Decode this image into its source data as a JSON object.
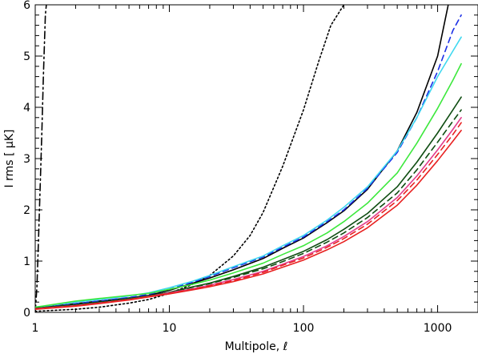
{
  "chart_data": {
    "type": "line",
    "xlabel": "Multipole, ℓ",
    "ylabel": "I rms [ μK]",
    "xscale": "log",
    "xlim": [
      1,
      2000
    ],
    "ylim": [
      0,
      6
    ],
    "grid": false,
    "x_ticks": [
      {
        "value": 1,
        "label": "1"
      },
      {
        "value": 10,
        "label": "10"
      },
      {
        "value": 100,
        "label": "100"
      },
      {
        "value": 1000,
        "label": "1000"
      }
    ],
    "y_ticks": [
      {
        "value": 0,
        "label": "0"
      },
      {
        "value": 1,
        "label": "1"
      },
      {
        "value": 2,
        "label": "2"
      },
      {
        "value": 3,
        "label": "3"
      },
      {
        "value": 4,
        "label": "4"
      },
      {
        "value": 5,
        "label": "5"
      },
      {
        "value": 6,
        "label": "6"
      }
    ],
    "series": [
      {
        "color": "#000000",
        "dash": "9 4 2 4",
        "points": [
          [
            1.0,
            0.0
          ],
          [
            1.03,
            0.5
          ],
          [
            1.06,
            1.5
          ],
          [
            1.09,
            2.5
          ],
          [
            1.12,
            3.5
          ],
          [
            1.15,
            4.6
          ],
          [
            1.19,
            5.8
          ],
          [
            1.21,
            6.0
          ]
        ]
      },
      {
        "color": "#000000",
        "dash": "2 3",
        "points": [
          [
            1,
            0.02
          ],
          [
            2,
            0.06
          ],
          [
            3,
            0.1
          ],
          [
            5,
            0.18
          ],
          [
            7,
            0.25
          ],
          [
            10,
            0.37
          ],
          [
            15,
            0.55
          ],
          [
            20,
            0.72
          ],
          [
            30,
            1.1
          ],
          [
            40,
            1.5
          ],
          [
            50,
            1.95
          ],
          [
            70,
            2.85
          ],
          [
            100,
            3.95
          ],
          [
            130,
            4.9
          ],
          [
            160,
            5.6
          ],
          [
            200,
            6.0
          ]
        ]
      },
      {
        "color": "#000000",
        "dash": "",
        "points": [
          [
            1,
            0.08
          ],
          [
            2,
            0.17
          ],
          [
            3,
            0.22
          ],
          [
            5,
            0.28
          ],
          [
            7,
            0.33
          ],
          [
            10,
            0.43
          ],
          [
            15,
            0.57
          ],
          [
            20,
            0.67
          ],
          [
            30,
            0.83
          ],
          [
            50,
            1.05
          ],
          [
            70,
            1.25
          ],
          [
            100,
            1.45
          ],
          [
            150,
            1.75
          ],
          [
            200,
            1.98
          ],
          [
            300,
            2.4
          ],
          [
            500,
            3.15
          ],
          [
            700,
            3.9
          ],
          [
            1000,
            5.0
          ],
          [
            1200,
            6.0
          ]
        ]
      },
      {
        "color": "#1a2ee6",
        "dash": "7 5",
        "points": [
          [
            1,
            0.08
          ],
          [
            2,
            0.17
          ],
          [
            3,
            0.22
          ],
          [
            5,
            0.29
          ],
          [
            7,
            0.35
          ],
          [
            10,
            0.45
          ],
          [
            15,
            0.59
          ],
          [
            20,
            0.7
          ],
          [
            30,
            0.87
          ],
          [
            50,
            1.08
          ],
          [
            70,
            1.27
          ],
          [
            100,
            1.47
          ],
          [
            150,
            1.77
          ],
          [
            200,
            2.0
          ],
          [
            300,
            2.42
          ],
          [
            500,
            3.12
          ],
          [
            700,
            3.8
          ],
          [
            1000,
            4.7
          ],
          [
            1300,
            5.5
          ],
          [
            1500,
            5.8
          ]
        ]
      },
      {
        "color": "#3fd8f0",
        "dash": "",
        "points": [
          [
            1,
            0.1
          ],
          [
            2,
            0.2
          ],
          [
            3,
            0.25
          ],
          [
            5,
            0.32
          ],
          [
            7,
            0.38
          ],
          [
            10,
            0.48
          ],
          [
            15,
            0.61
          ],
          [
            20,
            0.72
          ],
          [
            30,
            0.89
          ],
          [
            50,
            1.1
          ],
          [
            70,
            1.3
          ],
          [
            100,
            1.5
          ],
          [
            150,
            1.8
          ],
          [
            200,
            2.05
          ],
          [
            300,
            2.45
          ],
          [
            500,
            3.15
          ],
          [
            700,
            3.8
          ],
          [
            1000,
            4.6
          ],
          [
            1300,
            5.1
          ],
          [
            1500,
            5.37
          ]
        ]
      },
      {
        "color": "#3de83d",
        "dash": "",
        "points": [
          [
            1,
            0.1
          ],
          [
            2,
            0.22
          ],
          [
            3,
            0.27
          ],
          [
            5,
            0.33
          ],
          [
            7,
            0.37
          ],
          [
            10,
            0.45
          ],
          [
            15,
            0.55
          ],
          [
            20,
            0.63
          ],
          [
            30,
            0.77
          ],
          [
            50,
            0.96
          ],
          [
            70,
            1.13
          ],
          [
            100,
            1.3
          ],
          [
            150,
            1.55
          ],
          [
            200,
            1.77
          ],
          [
            300,
            2.13
          ],
          [
            500,
            2.72
          ],
          [
            700,
            3.3
          ],
          [
            1000,
            3.98
          ],
          [
            1300,
            4.53
          ],
          [
            1500,
            4.85
          ]
        ]
      },
      {
        "color": "#0f4d12",
        "dash": "",
        "points": [
          [
            1,
            0.08
          ],
          [
            2,
            0.15
          ],
          [
            3,
            0.2
          ],
          [
            5,
            0.27
          ],
          [
            7,
            0.32
          ],
          [
            10,
            0.39
          ],
          [
            15,
            0.5
          ],
          [
            20,
            0.57
          ],
          [
            30,
            0.7
          ],
          [
            50,
            0.88
          ],
          [
            70,
            1.03
          ],
          [
            100,
            1.19
          ],
          [
            150,
            1.42
          ],
          [
            200,
            1.62
          ],
          [
            300,
            1.93
          ],
          [
            500,
            2.45
          ],
          [
            700,
            2.93
          ],
          [
            1000,
            3.5
          ],
          [
            1300,
            3.95
          ],
          [
            1500,
            4.2
          ]
        ]
      },
      {
        "color": "#0f4d12",
        "dash": "7 5",
        "points": [
          [
            1,
            0.08
          ],
          [
            2,
            0.15
          ],
          [
            3,
            0.2
          ],
          [
            5,
            0.27
          ],
          [
            7,
            0.32
          ],
          [
            10,
            0.39
          ],
          [
            15,
            0.49
          ],
          [
            20,
            0.56
          ],
          [
            30,
            0.68
          ],
          [
            50,
            0.85
          ],
          [
            70,
            0.99
          ],
          [
            100,
            1.15
          ],
          [
            150,
            1.37
          ],
          [
            200,
            1.55
          ],
          [
            300,
            1.85
          ],
          [
            500,
            2.33
          ],
          [
            700,
            2.78
          ],
          [
            1000,
            3.32
          ],
          [
            1300,
            3.73
          ],
          [
            1500,
            3.95
          ]
        ]
      },
      {
        "color": "#e23c8c",
        "dash": "",
        "points": [
          [
            1,
            0.07
          ],
          [
            2,
            0.13
          ],
          [
            3,
            0.18
          ],
          [
            5,
            0.25
          ],
          [
            7,
            0.31
          ],
          [
            10,
            0.38
          ],
          [
            15,
            0.46
          ],
          [
            20,
            0.53
          ],
          [
            30,
            0.64
          ],
          [
            50,
            0.8
          ],
          [
            70,
            0.94
          ],
          [
            100,
            1.09
          ],
          [
            150,
            1.3
          ],
          [
            200,
            1.48
          ],
          [
            300,
            1.77
          ],
          [
            500,
            2.24
          ],
          [
            700,
            2.66
          ],
          [
            1000,
            3.17
          ],
          [
            1300,
            3.57
          ],
          [
            1500,
            3.8
          ]
        ]
      },
      {
        "color": "#e82020",
        "dash": "7 5",
        "points": [
          [
            1,
            0.07
          ],
          [
            2,
            0.13
          ],
          [
            3,
            0.18
          ],
          [
            5,
            0.25
          ],
          [
            7,
            0.31
          ],
          [
            10,
            0.37
          ],
          [
            15,
            0.45
          ],
          [
            20,
            0.52
          ],
          [
            30,
            0.62
          ],
          [
            50,
            0.78
          ],
          [
            70,
            0.92
          ],
          [
            100,
            1.06
          ],
          [
            150,
            1.27
          ],
          [
            200,
            1.44
          ],
          [
            300,
            1.72
          ],
          [
            500,
            2.18
          ],
          [
            700,
            2.58
          ],
          [
            1000,
            3.08
          ],
          [
            1300,
            3.47
          ],
          [
            1500,
            3.7
          ]
        ]
      },
      {
        "color": "#e82020",
        "dash": "",
        "points": [
          [
            1,
            0.06
          ],
          [
            2,
            0.12
          ],
          [
            3,
            0.17
          ],
          [
            5,
            0.24
          ],
          [
            7,
            0.3
          ],
          [
            10,
            0.36
          ],
          [
            15,
            0.44
          ],
          [
            20,
            0.5
          ],
          [
            30,
            0.6
          ],
          [
            50,
            0.75
          ],
          [
            70,
            0.88
          ],
          [
            100,
            1.02
          ],
          [
            150,
            1.22
          ],
          [
            200,
            1.38
          ],
          [
            300,
            1.65
          ],
          [
            500,
            2.09
          ],
          [
            700,
            2.48
          ],
          [
            1000,
            2.96
          ],
          [
            1300,
            3.34
          ],
          [
            1500,
            3.55
          ]
        ]
      }
    ]
  }
}
